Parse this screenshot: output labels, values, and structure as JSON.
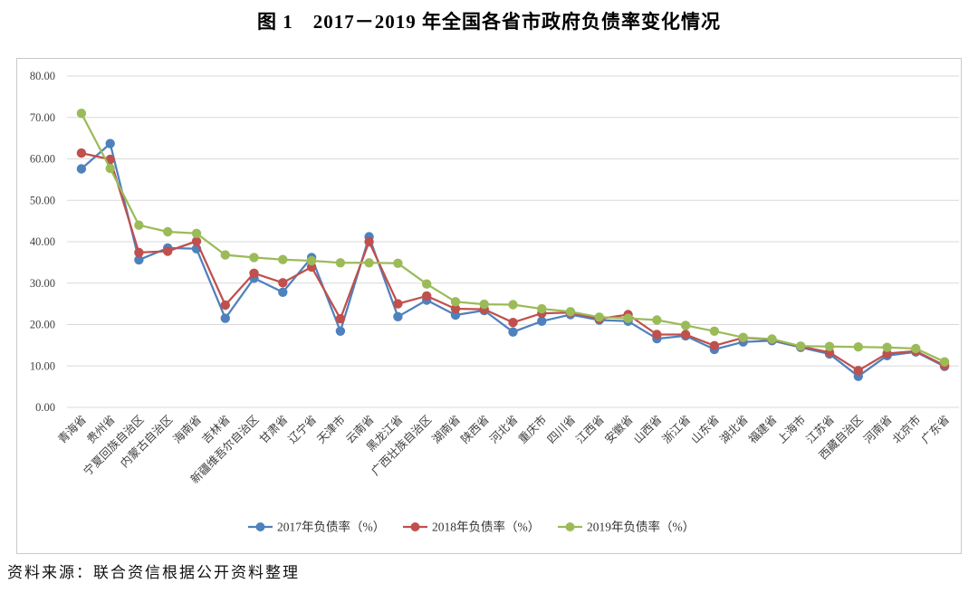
{
  "page": {
    "title": "图 1　2017－2019 年全国各省市政府负债率变化情况",
    "source": "资料来源：联合资信根据公开资料整理"
  },
  "chart_data": {
    "type": "line",
    "title": "图 1　2017－2019 年全国各省市政府负债率变化情况",
    "categories": [
      "青海省",
      "贵州省",
      "宁夏回族自治区",
      "内蒙古自治区",
      "海南省",
      "吉林省",
      "新疆维吾尔自治区",
      "甘肃省",
      "辽宁省",
      "天津市",
      "云南省",
      "黑龙江省",
      "广西壮族自治区",
      "湖南省",
      "陕西省",
      "河北省",
      "重庆市",
      "四川省",
      "江西省",
      "安徽省",
      "山西省",
      "浙江省",
      "山东省",
      "湖北省",
      "福建省",
      "上海市",
      "江苏省",
      "西藏自治区",
      "河南省",
      "北京市",
      "广东省"
    ],
    "series": [
      {
        "name": "2017年负债率（%）",
        "color": "#4F81BD",
        "values": [
          57.6,
          63.7,
          35.6,
          38.5,
          38.3,
          21.5,
          31.2,
          27.8,
          36.2,
          18.4,
          41.2,
          21.9,
          25.9,
          22.3,
          23.4,
          18.2,
          20.8,
          22.4,
          21.1,
          20.8,
          16.6,
          17.3,
          14.0,
          15.8,
          16.1,
          14.5,
          12.9,
          7.5,
          12.5,
          13.4,
          9.9
        ]
      },
      {
        "name": "2018年负债率（%）",
        "color": "#C0504D",
        "values": [
          61.4,
          59.9,
          37.4,
          37.7,
          40.1,
          24.7,
          32.4,
          30.1,
          33.9,
          21.4,
          40.0,
          25.0,
          26.9,
          23.8,
          23.7,
          20.5,
          22.7,
          22.9,
          21.4,
          22.4,
          17.6,
          17.6,
          14.9,
          16.8,
          16.4,
          14.7,
          13.3,
          8.9,
          13.0,
          13.6,
          10.1
        ]
      },
      {
        "name": "2019年负债率（%）",
        "color": "#9BBB59",
        "values": [
          71.0,
          57.7,
          44.0,
          42.4,
          42.0,
          36.8,
          36.2,
          35.7,
          35.4,
          34.9,
          34.9,
          34.8,
          29.8,
          25.5,
          24.9,
          24.8,
          23.8,
          23.1,
          21.8,
          21.5,
          21.1,
          19.8,
          18.4,
          16.9,
          16.5,
          14.8,
          14.7,
          14.6,
          14.5,
          14.2,
          11.0
        ]
      }
    ],
    "ylim": [
      0,
      80
    ],
    "ytick_step": 10,
    "yticks": [
      "0.00",
      "10.00",
      "20.00",
      "30.00",
      "40.00",
      "50.00",
      "60.00",
      "70.00",
      "80.00"
    ],
    "grid": true,
    "legend_position": "bottom",
    "marker": "circle",
    "grid_color": "#D9D9D9",
    "axis_text_color": "#404040"
  }
}
